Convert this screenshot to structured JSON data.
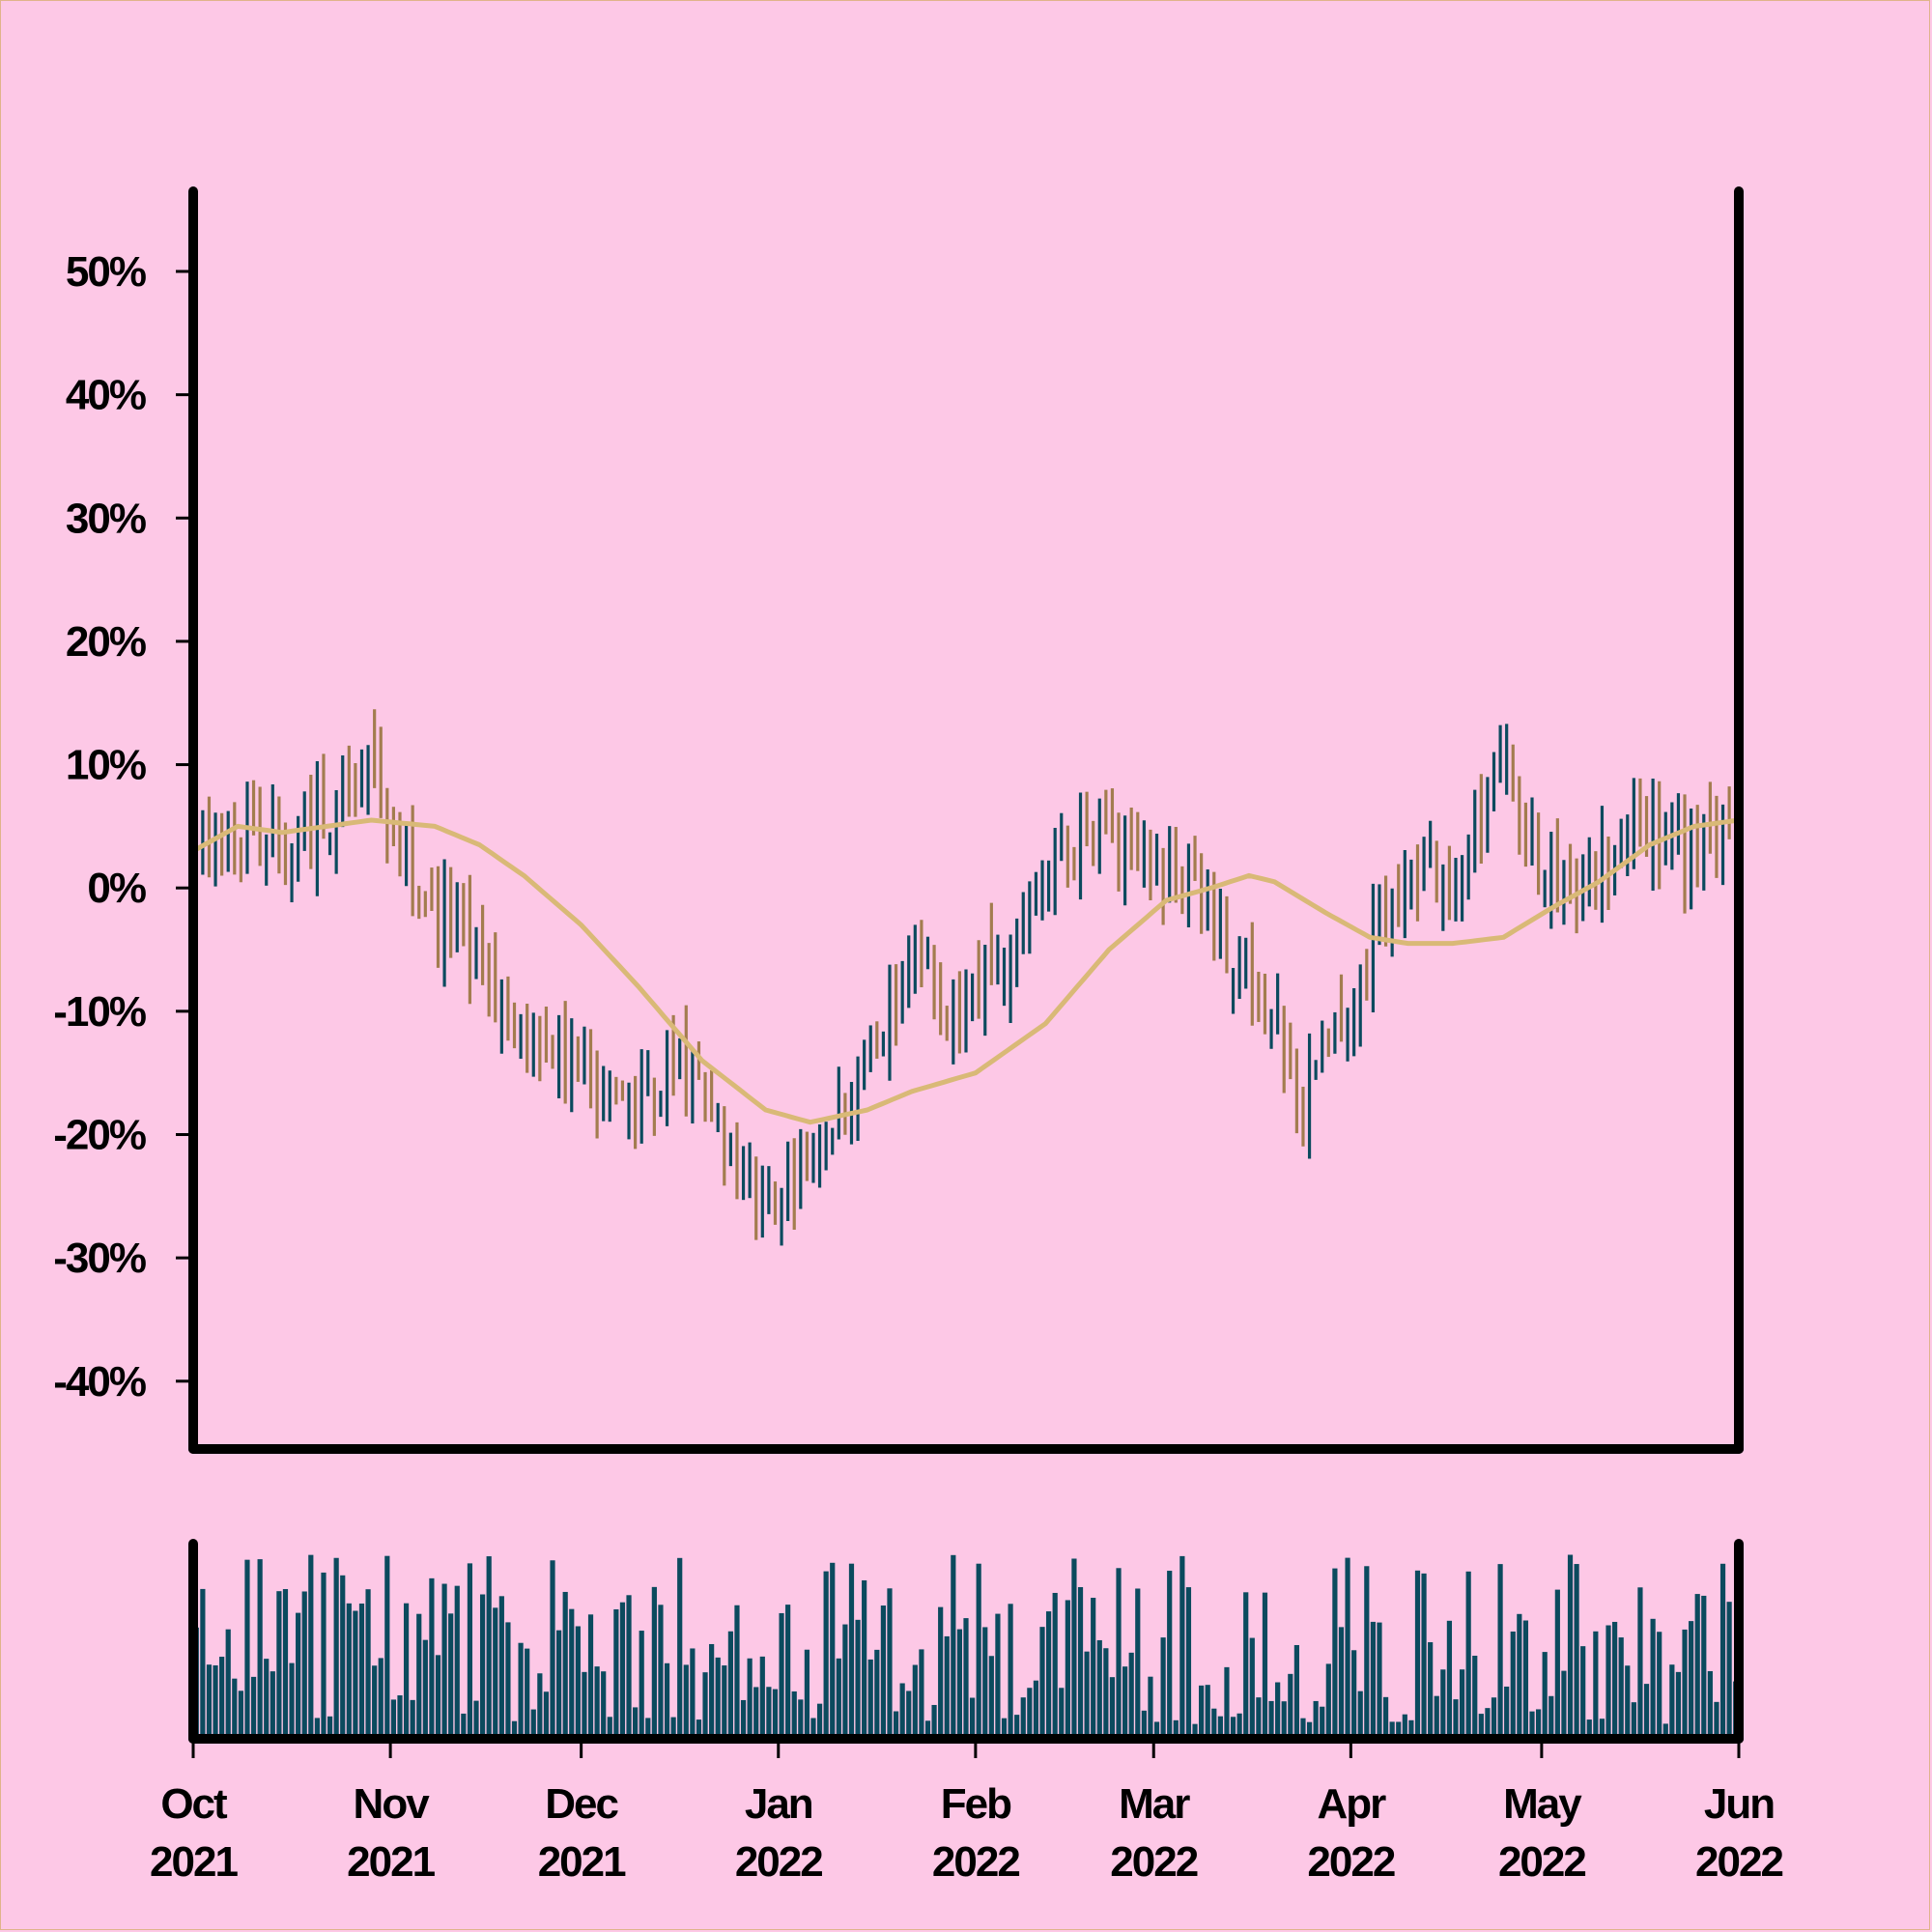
{
  "chart_data": {
    "type": "ohlc",
    "title": "",
    "ylabel": "",
    "xlabel": "",
    "yticks": [
      "-40%",
      "-30%",
      "-20%",
      "-10%",
      "0%",
      "10%",
      "20%",
      "30%",
      "40%",
      "50%"
    ],
    "ytick_values": [
      -40,
      -30,
      -20,
      -10,
      0,
      10,
      20,
      30,
      40,
      50
    ],
    "ylim": [
      -45.5,
      56.5
    ],
    "xlim": [
      "2021-10-01",
      "2022-06-01"
    ],
    "xticks": [
      {
        "month": "Oct",
        "year": "2021",
        "date": "2021-10-01"
      },
      {
        "month": "Nov",
        "year": "2021",
        "date": "2021-11-01"
      },
      {
        "month": "Dec",
        "year": "2021",
        "date": "2021-12-01"
      },
      {
        "month": "Jan",
        "year": "2022",
        "date": "2022-01-01"
      },
      {
        "month": "Feb",
        "year": "2022",
        "date": "2022-02-01"
      },
      {
        "month": "Mar",
        "year": "2022",
        "date": "2022-03-01"
      },
      {
        "month": "Apr",
        "year": "2022",
        "date": "2022-04-01"
      },
      {
        "month": "May",
        "year": "2022",
        "date": "2022-05-01"
      },
      {
        "month": "Jun",
        "year": "2022",
        "date": "2022-06-01"
      }
    ],
    "price_anchors": [
      {
        "date": "2021-10-01",
        "value": 3
      },
      {
        "date": "2021-10-08",
        "value": 5
      },
      {
        "date": "2021-10-15",
        "value": 3
      },
      {
        "date": "2021-10-22",
        "value": 6
      },
      {
        "date": "2021-10-29",
        "value": 9
      },
      {
        "date": "2021-11-05",
        "value": 0
      },
      {
        "date": "2021-11-12",
        "value": -4
      },
      {
        "date": "2021-11-19",
        "value": -10
      },
      {
        "date": "2021-11-26",
        "value": -13
      },
      {
        "date": "2021-12-03",
        "value": -16
      },
      {
        "date": "2021-12-10",
        "value": -18
      },
      {
        "date": "2021-12-17",
        "value": -15
      },
      {
        "date": "2021-12-24",
        "value": -22
      },
      {
        "date": "2022-01-01",
        "value": -25
      },
      {
        "date": "2022-01-08",
        "value": -21
      },
      {
        "date": "2022-01-15",
        "value": -13
      },
      {
        "date": "2022-01-22",
        "value": -6
      },
      {
        "date": "2022-01-29",
        "value": -10
      },
      {
        "date": "2022-02-05",
        "value": -6
      },
      {
        "date": "2022-02-12",
        "value": 0
      },
      {
        "date": "2022-02-19",
        "value": 4
      },
      {
        "date": "2022-02-26",
        "value": 3
      },
      {
        "date": "2022-03-05",
        "value": 2
      },
      {
        "date": "2022-03-12",
        "value": -4
      },
      {
        "date": "2022-03-19",
        "value": -10
      },
      {
        "date": "2022-03-24",
        "value": -18
      },
      {
        "date": "2022-03-28",
        "value": -14
      },
      {
        "date": "2022-04-03",
        "value": -7
      },
      {
        "date": "2022-04-10",
        "value": 3
      },
      {
        "date": "2022-04-17",
        "value": 0
      },
      {
        "date": "2022-04-24",
        "value": 10
      },
      {
        "date": "2022-05-01",
        "value": 2
      },
      {
        "date": "2022-05-08",
        "value": 0
      },
      {
        "date": "2022-05-15",
        "value": 6
      },
      {
        "date": "2022-05-22",
        "value": 3
      },
      {
        "date": "2022-06-01",
        "value": 4
      }
    ],
    "moving_average_anchors": [
      {
        "date": "2021-10-01",
        "value": 3
      },
      {
        "date": "2021-10-08",
        "value": 5
      },
      {
        "date": "2021-10-15",
        "value": 4.5
      },
      {
        "date": "2021-10-29",
        "value": 5.5
      },
      {
        "date": "2021-11-08",
        "value": 5
      },
      {
        "date": "2021-11-15",
        "value": 3.5
      },
      {
        "date": "2021-11-22",
        "value": 1
      },
      {
        "date": "2021-12-01",
        "value": -3
      },
      {
        "date": "2021-12-10",
        "value": -8
      },
      {
        "date": "2021-12-20",
        "value": -14
      },
      {
        "date": "2021-12-30",
        "value": -18
      },
      {
        "date": "2022-01-06",
        "value": -19
      },
      {
        "date": "2022-01-15",
        "value": -18
      },
      {
        "date": "2022-01-22",
        "value": -16.5
      },
      {
        "date": "2022-02-01",
        "value": -15
      },
      {
        "date": "2022-02-12",
        "value": -11
      },
      {
        "date": "2022-02-22",
        "value": -5
      },
      {
        "date": "2022-03-03",
        "value": -1
      },
      {
        "date": "2022-03-10",
        "value": 0
      },
      {
        "date": "2022-03-16",
        "value": 1
      },
      {
        "date": "2022-03-20",
        "value": 0.5
      },
      {
        "date": "2022-03-28",
        "value": -2
      },
      {
        "date": "2022-04-04",
        "value": -4
      },
      {
        "date": "2022-04-10",
        "value": -4.5
      },
      {
        "date": "2022-04-17",
        "value": -4.5
      },
      {
        "date": "2022-04-25",
        "value": -4
      },
      {
        "date": "2022-05-03",
        "value": -1.5
      },
      {
        "date": "2022-05-10",
        "value": 0.5
      },
      {
        "date": "2022-05-18",
        "value": 3.5
      },
      {
        "date": "2022-05-25",
        "value": 5
      },
      {
        "date": "2022-06-01",
        "value": 5.5
      }
    ],
    "volume_range": [
      0,
      1
    ],
    "grid": false,
    "legend": "none",
    "colors": {
      "background": "#fdc8e6",
      "up": "#0b4a5e",
      "down": "#a37c4f",
      "moving_average": "#d9b977",
      "volume": "#0b4a5e",
      "axis": "#000000"
    }
  }
}
